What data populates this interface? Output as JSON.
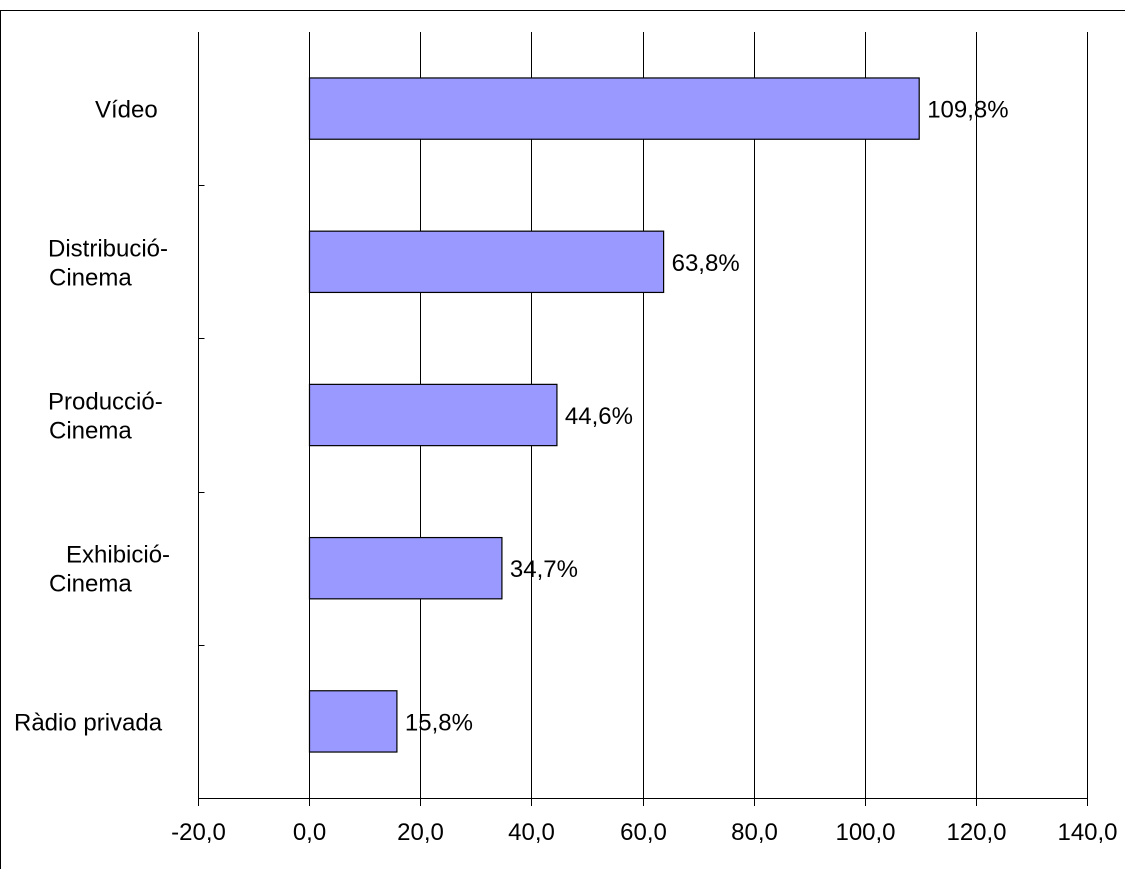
{
  "chart_data": {
    "type": "bar",
    "orientation": "horizontal",
    "categories": [
      [
        "Vídeo"
      ],
      [
        "Distribució-",
        "Cinema"
      ],
      [
        "Producció-",
        "Cinema"
      ],
      [
        "Exhibició-",
        "Cinema"
      ],
      [
        "Ràdio privada"
      ]
    ],
    "values": [
      109.8,
      63.8,
      44.6,
      34.7,
      15.8
    ],
    "data_labels": [
      "109,8%",
      "63,8%",
      "44,6%",
      "34,7%",
      "15,8%"
    ],
    "x_ticks": [
      -20,
      0,
      20,
      40,
      60,
      80,
      100,
      120,
      140
    ],
    "x_tick_labels": [
      "-20,0",
      "0,0",
      "20,0",
      "40,0",
      "60,0",
      "80,0",
      "100,0",
      "120,0",
      "140,0"
    ],
    "xlim": [
      -20,
      140
    ],
    "grid": "vertical",
    "bar_color": "#9999ff",
    "bar_edge_color": "#000000",
    "legend": "none"
  }
}
